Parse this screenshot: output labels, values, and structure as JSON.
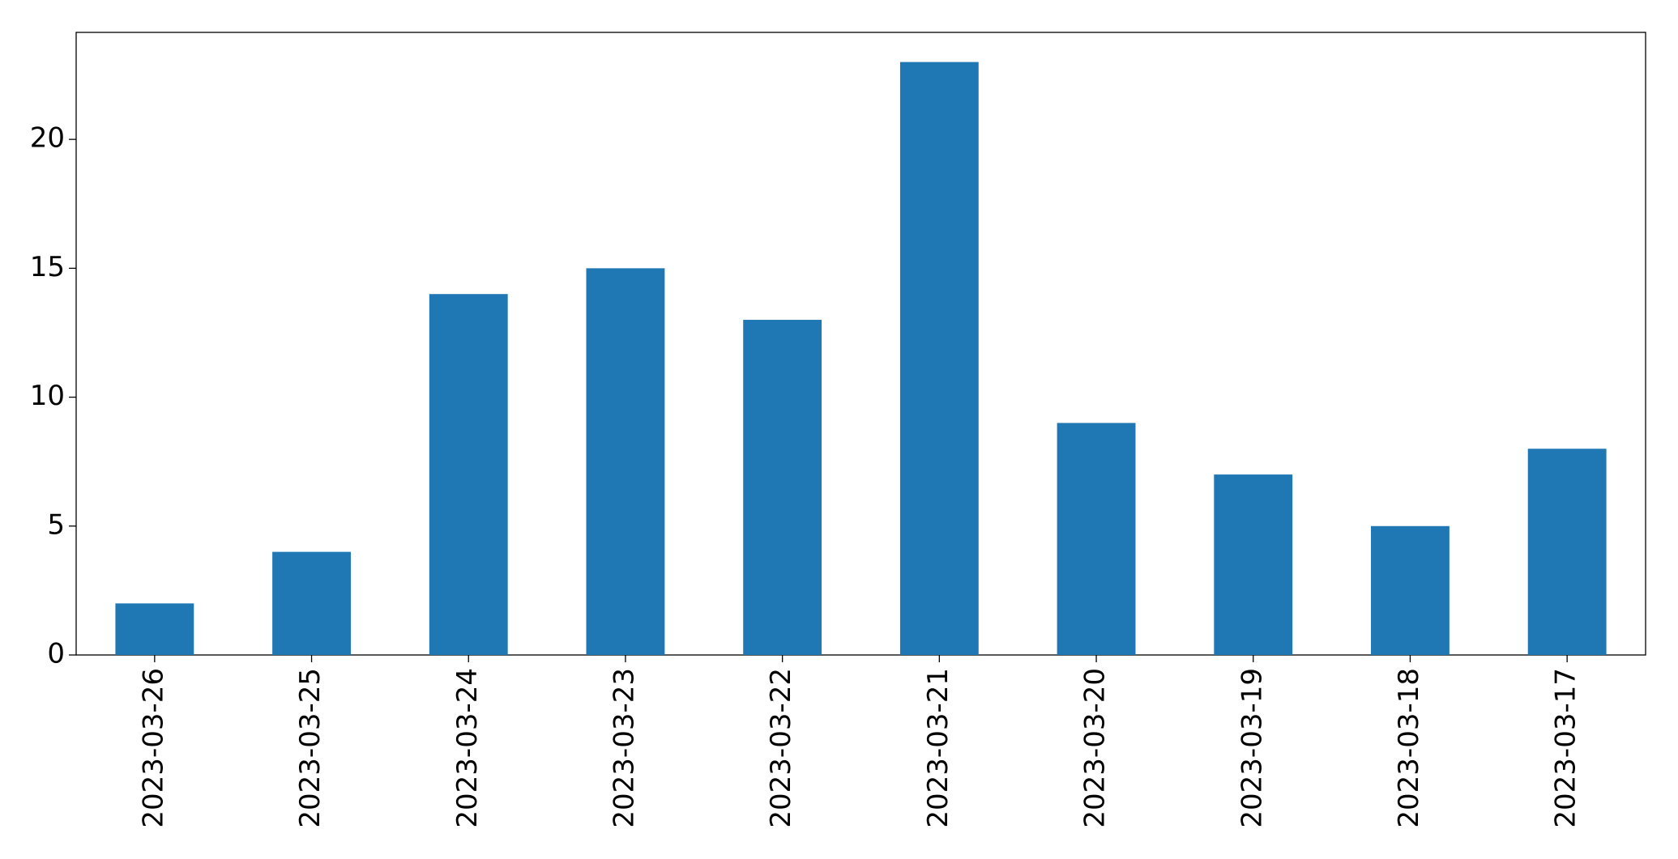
{
  "chart_data": {
    "type": "bar",
    "categories": [
      "2023-03-26",
      "2023-03-25",
      "2023-03-24",
      "2023-03-23",
      "2023-03-22",
      "2023-03-21",
      "2023-03-20",
      "2023-03-19",
      "2023-03-18",
      "2023-03-17"
    ],
    "values": [
      2,
      4,
      14,
      15,
      13,
      23,
      9,
      7,
      5,
      8
    ],
    "color": "#1f77b4",
    "ylim": [
      0,
      24.15
    ],
    "yticks": [
      0,
      5,
      10,
      15,
      20
    ],
    "grid": false
  }
}
